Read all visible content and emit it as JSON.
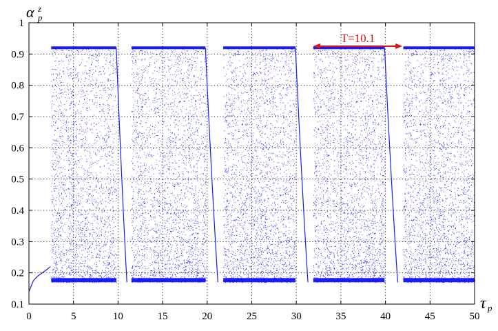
{
  "chart_data": {
    "type": "scatter",
    "title": "",
    "xlabel": {
      "symbol": "τ",
      "subscript": "p"
    },
    "ylabel": {
      "symbol": "α",
      "superscript": "z",
      "subscript": "p"
    },
    "xlim": [
      0,
      50
    ],
    "ylim": [
      0.1,
      1.0
    ],
    "xticks": [
      "0",
      "5",
      "10",
      "15",
      "20",
      "25",
      "30",
      "35",
      "40",
      "45",
      "50"
    ],
    "yticks": [
      "0.1",
      "0.2",
      "0.3",
      "0.4",
      "0.5",
      "0.6",
      "0.7",
      "0.8",
      "0.9",
      "1"
    ],
    "grid": true,
    "series": [
      {
        "color": "#1a1aff",
        "transient": [
          [
            0,
            0.14
          ],
          [
            0.5,
            0.175
          ],
          [
            1.0,
            0.19
          ],
          [
            1.5,
            0.2
          ],
          [
            2.0,
            0.21
          ],
          [
            2.4,
            0.22
          ]
        ],
        "chaotic_bands": [
          [
            2.5,
            9.8
          ],
          [
            11.5,
            19.8
          ],
          [
            21.8,
            29.9
          ],
          [
            31.9,
            39.9
          ],
          [
            42.0,
            50.0
          ]
        ],
        "band_min": 0.17,
        "band_max": 0.92,
        "decay_segments": [
          [
            9.8,
            11.5
          ],
          [
            19.8,
            21.8
          ],
          [
            29.9,
            31.9
          ],
          [
            39.9,
            42.0
          ]
        ]
      }
    ],
    "annotation": {
      "text": "T=10.1",
      "x_start": 31.9,
      "x_end": 41.9,
      "y": 0.925,
      "color": "#e01010"
    }
  }
}
